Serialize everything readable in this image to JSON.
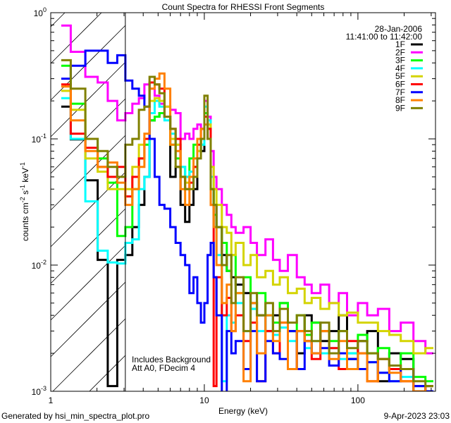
{
  "chart_data": {
    "type": "line",
    "title": "Count Spectra for RHESSI Front Segments",
    "xlabel": "Energy (keV)",
    "ylabel_base": "counts cm",
    "ylabel_parts": [
      "counts cm",
      "-2",
      " s",
      "-1",
      " keV",
      "-1"
    ],
    "xscale": "log",
    "yscale": "log",
    "xlim": [
      1,
      320
    ],
    "ylim": [
      0.001,
      1
    ],
    "x_ticks": [
      {
        "value": 1,
        "label": "1"
      },
      {
        "value": 10,
        "label": "10"
      },
      {
        "value": 100,
        "label": "100"
      }
    ],
    "y_ticks": [
      {
        "value": 1,
        "base": "10",
        "exp": "0"
      },
      {
        "value": 0.1,
        "base": "10",
        "exp": "-1"
      },
      {
        "value": 0.01,
        "base": "10",
        "exp": "-2"
      },
      {
        "value": 0.001,
        "base": "10",
        "exp": "-3"
      }
    ],
    "hatched_range_keV": [
      1,
      3.06
    ],
    "date": "28-Jan-2006",
    "time_range": "11:41:00 to 11:42:00",
    "annotations": [
      "Includes Background",
      "Att A0, FDecim 4"
    ],
    "legend_placement": "top-right",
    "energy_edges": [
      1.17,
      1.35,
      1.68,
      2.02,
      2.35,
      2.71,
      3.06,
      3.4,
      3.75,
      4.07,
      4.4,
      4.75,
      5.1,
      5.5,
      6,
      6.5,
      7,
      7.5,
      8,
      8.5,
      9,
      9.5,
      10,
      10.5,
      11,
      11.5,
      12,
      13,
      14,
      15,
      16,
      18,
      20,
      22,
      25,
      28,
      31,
      35,
      40,
      45,
      50,
      57,
      65,
      75,
      85,
      100,
      115,
      135,
      160,
      190,
      230,
      275,
      310
    ],
    "series": [
      {
        "name": "1F",
        "color": "#000000",
        "values": [
          0.18,
          0.099,
          0.047,
          0.011,
          0.0011,
          0.011,
          0.012,
          0.02,
          0.03,
          0.05,
          0.14,
          0.15,
          0.16,
          0.15,
          0.05,
          0.06,
          0.03,
          0.022,
          0.03,
          0.04,
          0.1,
          0.08,
          0.15,
          0.1,
          0.04,
          0.03,
          0.02,
          0.012,
          0.009,
          0.008,
          0.007,
          0.006,
          0.005,
          0.004,
          0.003,
          0.004,
          0.005,
          0.003,
          0.002,
          0.004,
          0.0035,
          0.0025,
          0.003,
          0.004,
          0.0018,
          0.0025,
          0.003,
          0.0012,
          0.002,
          0.0018,
          0.0009,
          0.0011
        ]
      },
      {
        "name": "2F",
        "color": "#ff00ff",
        "values": [
          0.79,
          0.49,
          0.31,
          0.28,
          0.2,
          0.14,
          0.16,
          0.19,
          0.21,
          0.27,
          0.25,
          0.22,
          0.19,
          0.18,
          0.17,
          0.16,
          0.1,
          0.11,
          0.1,
          0.12,
          0.13,
          0.12,
          0.2,
          0.15,
          0.08,
          0.05,
          0.04,
          0.03,
          0.025,
          0.02,
          0.018,
          0.02,
          0.015,
          0.012,
          0.016,
          0.011,
          0.009,
          0.012,
          0.008,
          0.007,
          0.006,
          0.007,
          0.005,
          0.006,
          0.004,
          0.005,
          0.004,
          0.0045,
          0.003,
          0.0035,
          0.0025,
          0.002
        ]
      },
      {
        "name": "3F",
        "color": "#00ff00",
        "values": [
          0.38,
          0.19,
          0.1,
          0.07,
          0.045,
          0.017,
          0.02,
          0.04,
          0.07,
          0.09,
          0.14,
          0.15,
          0.16,
          0.15,
          0.09,
          0.07,
          0.06,
          0.05,
          0.07,
          0.09,
          0.1,
          0.09,
          0.16,
          0.12,
          0.04,
          0.025,
          0.02,
          0.015,
          0.009,
          0.012,
          0.006,
          0.008,
          0.0045,
          0.006,
          0.004,
          0.0035,
          0.005,
          0.003,
          0.004,
          0.0028,
          0.0035,
          0.003,
          0.0025,
          0.003,
          0.002,
          0.0028,
          0.002,
          0.0022,
          0.0015,
          0.002,
          0.0013,
          0.0012
        ]
      },
      {
        "name": "4F",
        "color": "#00ffff",
        "values": [
          0.21,
          0.1,
          0.032,
          0.013,
          0.0105,
          0.0103,
          0.015,
          0.016,
          0.04,
          0.05,
          0.16,
          0.2,
          0.18,
          0.14,
          0.11,
          0.09,
          0.06,
          0.05,
          0.055,
          0.06,
          0.08,
          0.09,
          0.18,
          0.14,
          0.05,
          0.02,
          0.012,
          0.0012,
          0.004,
          0.0035,
          0.005,
          0.003,
          0.0045,
          0.003,
          0.004,
          0.0028,
          0.0032,
          0.0025,
          0.003,
          0.0022,
          0.0025,
          0.002,
          0.0022,
          0.0018,
          0.002,
          0.0015,
          0.0017,
          0.0014,
          0.0012,
          0.0013,
          0.0011,
          0.001
        ]
      },
      {
        "name": "5F",
        "color": "#d4d400",
        "values": [
          0.24,
          0.17,
          0.07,
          0.055,
          0.04,
          0.04,
          0.04,
          0.06,
          0.09,
          0.1,
          0.2,
          0.21,
          0.2,
          0.18,
          0.1,
          0.09,
          0.05,
          0.045,
          0.05,
          0.06,
          0.08,
          0.1,
          0.15,
          0.13,
          0.06,
          0.04,
          0.03,
          0.02,
          0.018,
          0.012,
          0.015,
          0.01,
          0.012,
          0.008,
          0.009,
          0.007,
          0.008,
          0.006,
          0.0065,
          0.005,
          0.0055,
          0.0045,
          0.005,
          0.004,
          0.0042,
          0.0035,
          0.0035,
          0.003,
          0.0028,
          0.0025,
          0.002,
          0.0022
        ]
      },
      {
        "name": "6F",
        "color": "#ff0000",
        "values": [
          0.27,
          0.11,
          0.085,
          0.06,
          0.05,
          0.06,
          0.035,
          0.05,
          0.07,
          0.1,
          0.28,
          0.27,
          0.25,
          0.15,
          0.12,
          0.1,
          0.05,
          0.04,
          0.045,
          0.06,
          0.09,
          0.12,
          0.15,
          0.12,
          0.03,
          0.0011,
          0.008,
          0.004,
          0.0055,
          0.003,
          0.004,
          0.0025,
          0.0035,
          0.0012,
          0.003,
          0.002,
          0.0035,
          0.0015,
          0.003,
          0.0025,
          0.0018,
          0.003,
          0.0022,
          0.0015,
          0.0025,
          0.002,
          0.0012,
          0.0018,
          0.0015,
          0.0012,
          0.0011,
          0.001
        ]
      },
      {
        "name": "7F",
        "color": "#0000ff",
        "values": [
          0.3,
          0.38,
          0.5,
          0.5,
          0.4,
          0.46,
          0.29,
          0.25,
          0.22,
          0.18,
          0.1,
          0.05,
          0.03,
          0.028,
          0.02,
          0.015,
          0.012,
          0.01,
          0.006,
          0.008,
          0.005,
          0.0035,
          0.005,
          0.012,
          0.015,
          0.008,
          0.004,
          0.0009,
          0.003,
          0.002,
          0.0025,
          0.0015,
          0.003,
          0.0012,
          0.0025,
          0.002,
          0.0018,
          0.003,
          0.0015,
          0.0025,
          0.002,
          0.0022,
          0.0016,
          0.002,
          0.0018,
          0.0015,
          0.0017,
          0.0014,
          0.0012,
          0.0015,
          0.0011,
          0.001
        ]
      },
      {
        "name": "8F",
        "color": "#ff8000",
        "values": [
          0.26,
          0.14,
          0.08,
          0.06,
          0.065,
          0.045,
          0.03,
          0.04,
          0.06,
          0.11,
          0.25,
          0.3,
          0.33,
          0.25,
          0.09,
          0.08,
          0.04,
          0.03,
          0.05,
          0.07,
          0.1,
          0.12,
          0.13,
          0.1,
          0.03,
          0.02,
          0.01,
          0.005,
          0.007,
          0.003,
          0.006,
          0.0012,
          0.005,
          0.002,
          0.004,
          0.0025,
          0.0035,
          0.0015,
          0.003,
          0.0025,
          0.002,
          0.003,
          0.0018,
          0.0025,
          0.0015,
          0.002,
          0.0012,
          0.0018,
          0.0014,
          0.0012,
          0.001,
          0.0011
        ]
      },
      {
        "name": "9F",
        "color": "#808000",
        "values": [
          0.42,
          0.25,
          0.1,
          0.08,
          0.06,
          0.05,
          0.09,
          0.1,
          0.17,
          0.18,
          0.31,
          0.27,
          0.23,
          0.15,
          0.12,
          0.06,
          0.05,
          0.04,
          0.04,
          0.05,
          0.07,
          0.1,
          0.22,
          0.1,
          0.04,
          0.03,
          0.02,
          0.01,
          0.012,
          0.005,
          0.008,
          0.003,
          0.006,
          0.004,
          0.005,
          0.003,
          0.0045,
          0.0035,
          0.004,
          0.003,
          0.0025,
          0.0035,
          0.002,
          0.003,
          0.0022,
          0.0025,
          0.002,
          0.0018,
          0.0016,
          0.0015,
          0.0012,
          0.0011
        ]
      }
    ]
  },
  "footer": {
    "generated_by": "Generated by hsi_min_spectra_plot.pro",
    "timestamp": "9-Apr-2023 23:03"
  }
}
